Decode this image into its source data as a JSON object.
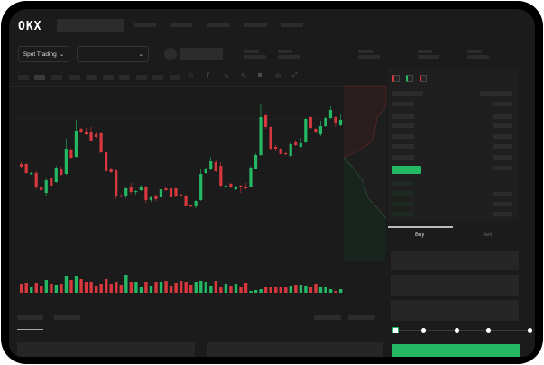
{
  "header": {
    "logo": "OKX",
    "nav_count": 5
  },
  "market_bar": {
    "mode_label": "Spot Trading",
    "mode_chevron": "chevron-down-icon",
    "pair_chevron": "chevron-down-icon"
  },
  "toolbar": {
    "icons": [
      "candle-type-icon",
      "indicator-icon",
      "line-icon",
      "pen-icon",
      "camera-icon",
      "settings-icon",
      "fullscreen-icon"
    ]
  },
  "order_book": {
    "view_icons": [
      "book-both-icon",
      "book-buy-icon",
      "book-sell-icon"
    ]
  },
  "trade_panel": {
    "tabs": [
      {
        "label": "Buy",
        "active": true
      },
      {
        "label": "Sell",
        "active": false
      }
    ],
    "slider_percent": 0,
    "slider_stops": [
      0,
      25,
      50,
      75,
      100
    ]
  },
  "colors": {
    "up": "#25b864",
    "down": "#d6383e",
    "bg": "#1b1b1b",
    "placeholder": "#2c2c2c"
  },
  "candles": [
    [
      168,
      170,
      164,
      165
    ],
    [
      168,
      169,
      157,
      158
    ],
    [
      157,
      159,
      156,
      158
    ],
    [
      158,
      160,
      140,
      143
    ],
    [
      143,
      144,
      137,
      139
    ],
    [
      136,
      152,
      133,
      150
    ],
    [
      152,
      153,
      142,
      144
    ],
    [
      148,
      166,
      147,
      164
    ],
    [
      163,
      165,
      155,
      156
    ],
    [
      157,
      196,
      156,
      185
    ],
    [
      184,
      186,
      174,
      175
    ],
    [
      176,
      217,
      175,
      205
    ],
    [
      207,
      208,
      202,
      203
    ],
    [
      204,
      208,
      200,
      201
    ],
    [
      204,
      209,
      193,
      194
    ],
    [
      201,
      203,
      197,
      198
    ],
    [
      202,
      204,
      180,
      181
    ],
    [
      181,
      183,
      159,
      160
    ],
    [
      163,
      164,
      158,
      159
    ],
    [
      161,
      162,
      129,
      133
    ],
    [
      133,
      135,
      131,
      132
    ],
    [
      132,
      143,
      130,
      141
    ],
    [
      142,
      147,
      135,
      137
    ],
    [
      137,
      139,
      134,
      138
    ],
    [
      139,
      145,
      138,
      143
    ],
    [
      143,
      144,
      125,
      128
    ],
    [
      128,
      132,
      126,
      131
    ],
    [
      133,
      135,
      127,
      129
    ],
    [
      131,
      141,
      129,
      140
    ],
    [
      141,
      142,
      138,
      139
    ],
    [
      141,
      143,
      129,
      131
    ],
    [
      141,
      142,
      131,
      133
    ],
    [
      134,
      135,
      132,
      133
    ],
    [
      132,
      134,
      121,
      121
    ],
    [
      122,
      123,
      120,
      121
    ],
    [
      121,
      128,
      119,
      127
    ],
    [
      128,
      162,
      127,
      157
    ],
    [
      158,
      164,
      157,
      162
    ],
    [
      162,
      176,
      161,
      171
    ],
    [
      170,
      173,
      159,
      160
    ],
    [
      166,
      170,
      142,
      144
    ],
    [
      143,
      146,
      139,
      144
    ],
    [
      146,
      147,
      141,
      142
    ],
    [
      140,
      144,
      139,
      143
    ],
    [
      144,
      145,
      136,
      143
    ],
    [
      143,
      147,
      140,
      141
    ],
    [
      143,
      166,
      142,
      164
    ],
    [
      163,
      180,
      162,
      178
    ],
    [
      178,
      235,
      177,
      220
    ],
    [
      222,
      224,
      207,
      209
    ],
    [
      209,
      210,
      184,
      185
    ],
    [
      187,
      189,
      182,
      185
    ],
    [
      185,
      186,
      178,
      179
    ],
    [
      180,
      181,
      178,
      179
    ],
    [
      177,
      192,
      176,
      190
    ],
    [
      192,
      195,
      188,
      189
    ],
    [
      187,
      197,
      186,
      191
    ],
    [
      192,
      219,
      191,
      218
    ],
    [
      220,
      221,
      207,
      208
    ],
    [
      207,
      208,
      202,
      203
    ],
    [
      201,
      216,
      199,
      210
    ],
    [
      210,
      220,
      209,
      219
    ],
    [
      219,
      232,
      218,
      228
    ],
    [
      220,
      221,
      209,
      213
    ],
    [
      211,
      223,
      210,
      217
    ]
  ],
  "volumes": [
    10,
    11,
    7,
    11,
    8,
    14,
    10,
    9,
    10,
    19,
    14,
    19,
    15,
    12,
    12,
    8,
    10,
    15,
    10,
    12,
    9,
    20,
    12,
    12,
    7,
    12,
    8,
    12,
    12,
    13,
    8,
    11,
    13,
    12,
    9,
    12,
    13,
    12,
    8,
    13,
    7,
    10,
    8,
    10,
    6,
    11,
    2,
    3,
    4,
    7,
    6,
    7,
    6,
    7,
    8,
    9,
    9,
    8,
    7,
    10,
    6,
    6,
    4,
    2,
    4
  ]
}
